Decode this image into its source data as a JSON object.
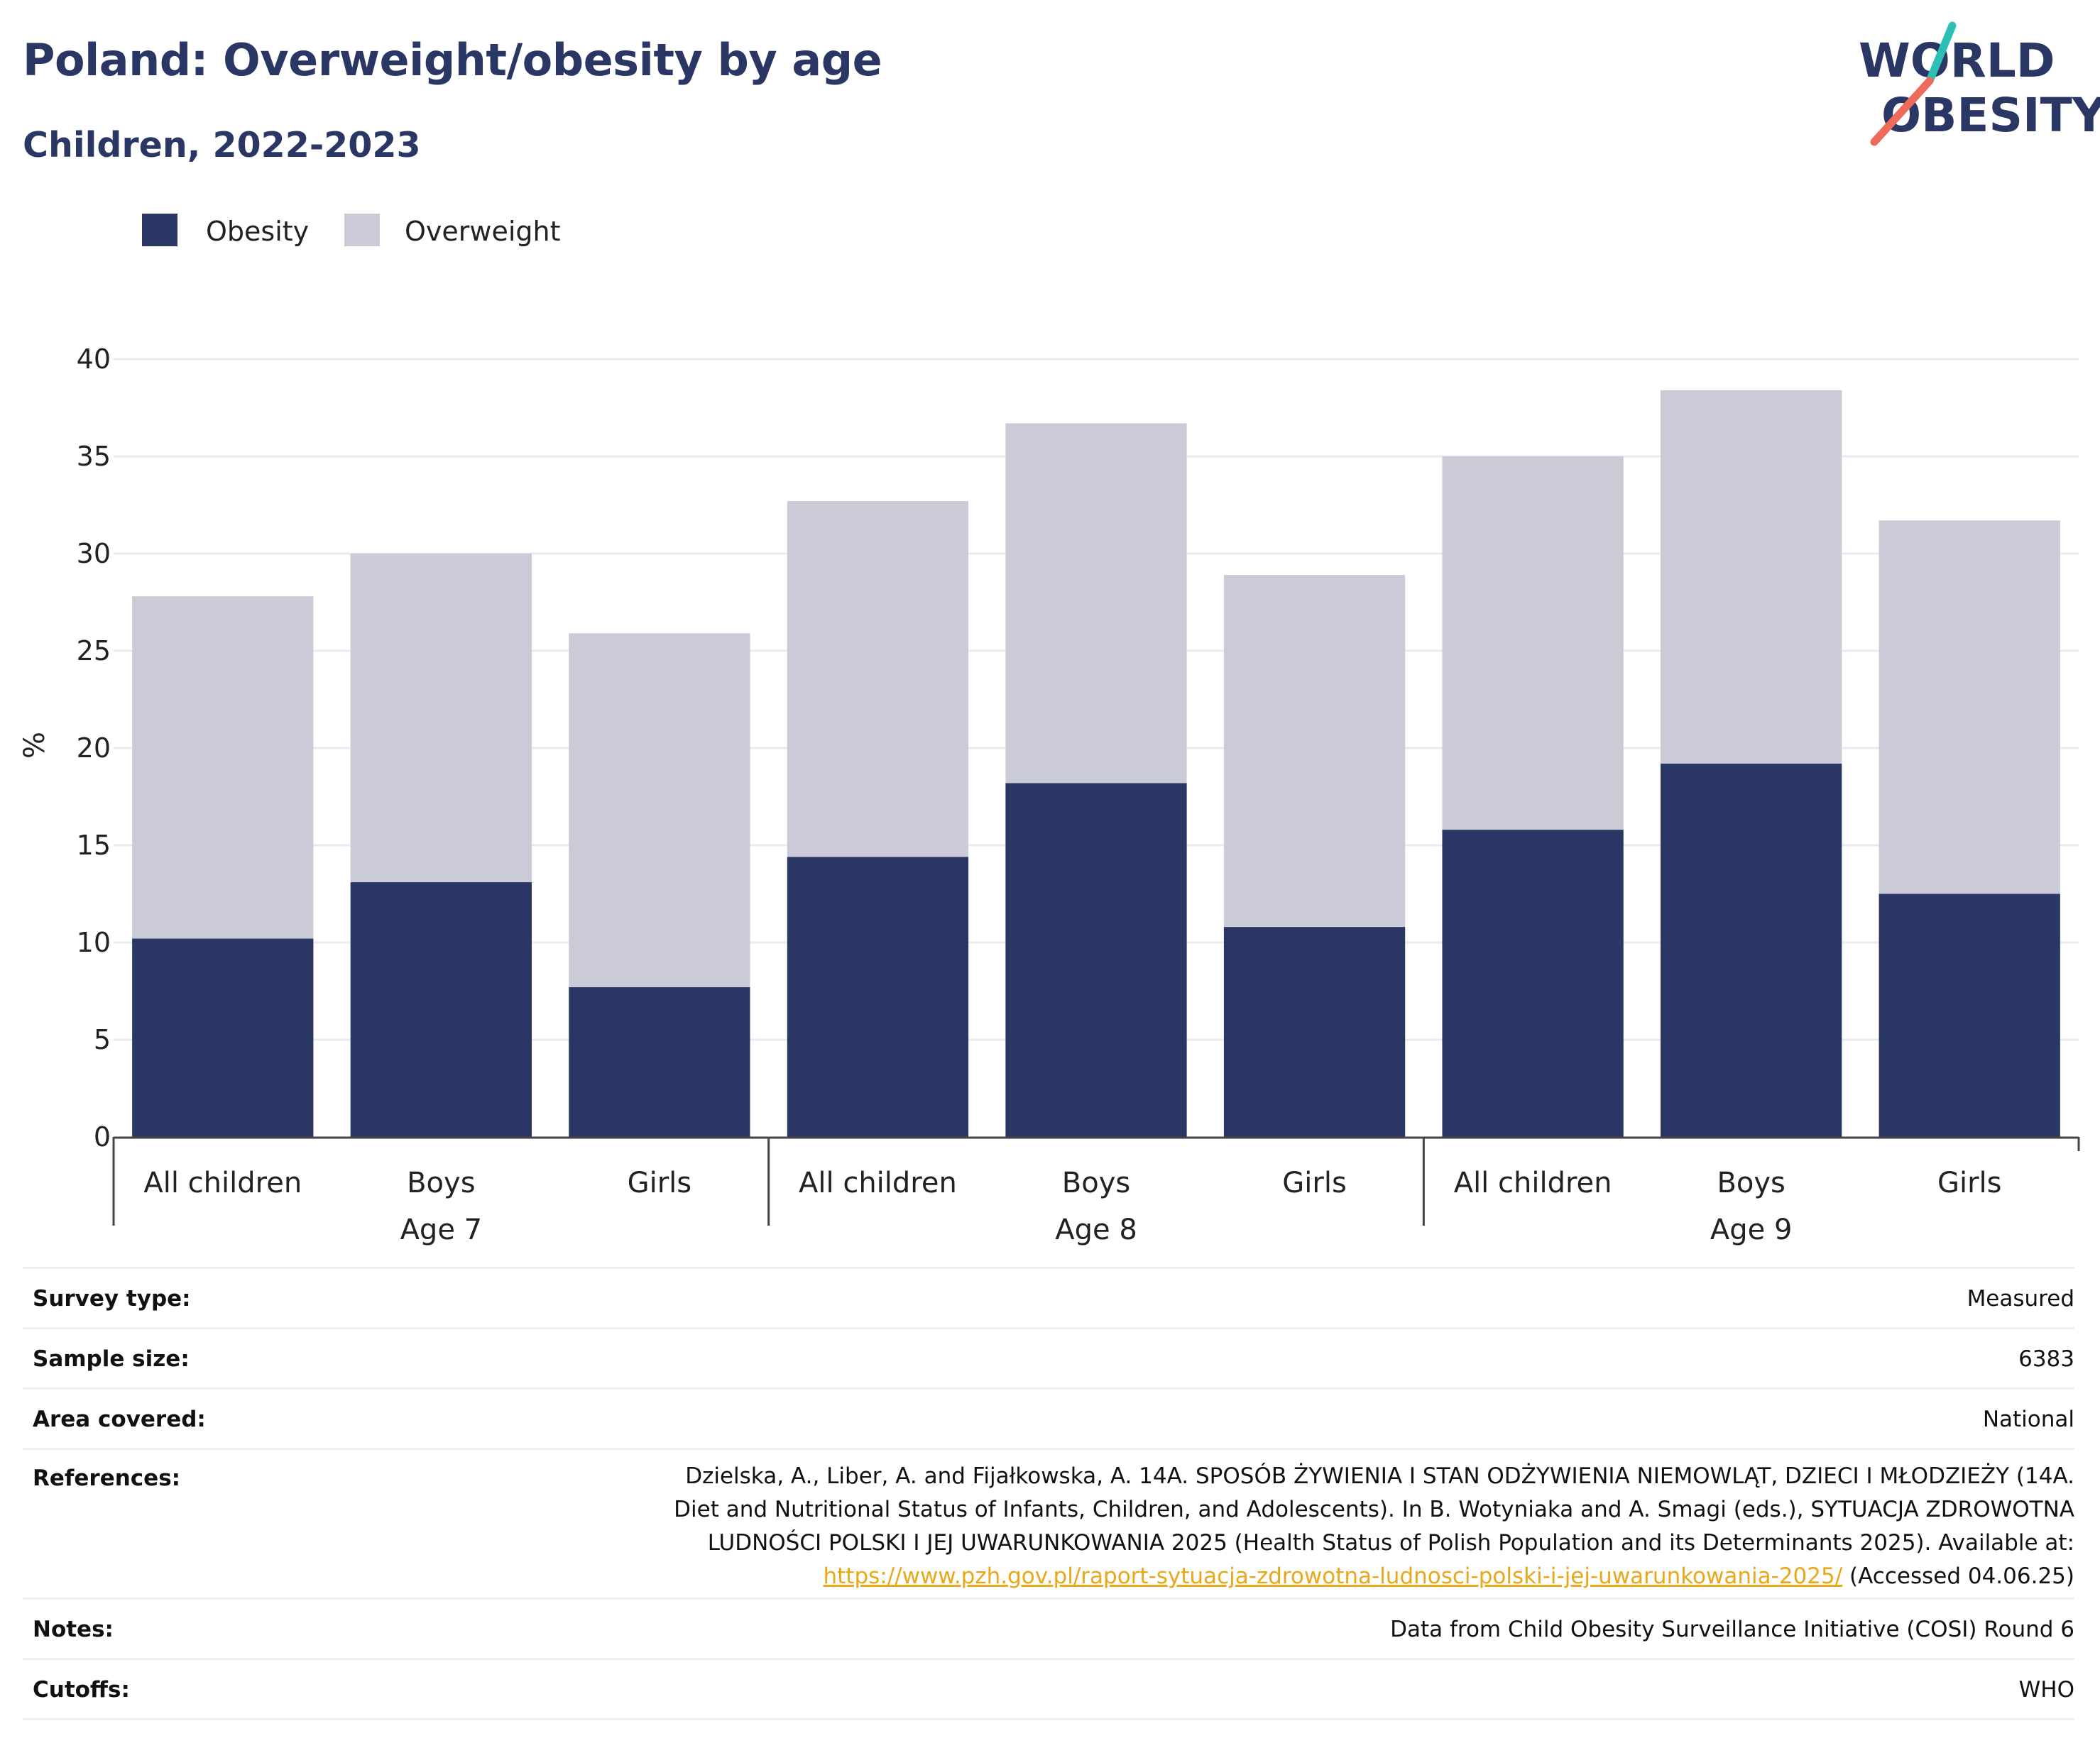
{
  "header": {
    "title": "Poland: Overweight/obesity by age",
    "subtitle": "Children, 2022-2023"
  },
  "logo": {
    "line1": "WORLD",
    "line2": "OBESITY",
    "colors": {
      "text": "#2a3664",
      "slash_top": "#2cbfb3",
      "slash_bottom": "#ee6a5a"
    }
  },
  "legend": [
    {
      "label": "Obesity",
      "color": "#2a3664"
    },
    {
      "label": "Overweight",
      "color": "#cacbd7"
    }
  ],
  "chart_data": {
    "type": "bar",
    "stacked": true,
    "categories": [
      "All children",
      "Boys",
      "Girls",
      "All children",
      "Boys",
      "Girls",
      "All children",
      "Boys",
      "Girls"
    ],
    "groups": [
      {
        "label": "Age 7",
        "count": 3
      },
      {
        "label": "Age 8",
        "count": 3
      },
      {
        "label": "Age 9",
        "count": 3
      }
    ],
    "series": [
      {
        "name": "Obesity",
        "color": "#2a3664",
        "values": [
          10.2,
          13.1,
          7.7,
          14.4,
          18.2,
          10.8,
          15.8,
          19.2,
          12.5
        ]
      },
      {
        "name": "Overweight",
        "color": "#cacbd7",
        "values": [
          17.6,
          16.9,
          18.2,
          18.3,
          18.5,
          18.1,
          19.2,
          19.2,
          19.2
        ]
      }
    ],
    "ylabel": "%",
    "ylim": [
      0,
      40
    ],
    "yticks": [
      0,
      5,
      10,
      15,
      20,
      25,
      30,
      35,
      40
    ],
    "grid": true,
    "legend_position": "top-left"
  },
  "info": {
    "survey_type": {
      "label": "Survey type:",
      "value": "Measured"
    },
    "sample_size": {
      "label": "Sample size:",
      "value": "6383"
    },
    "area_covered": {
      "label": "Area covered:",
      "value": "National"
    },
    "references": {
      "label": "References:",
      "line1": "Dzielska, A., Liber, A. and Fijałkowska, A. 14A. SPOSÓB ŻYWIENIA I STAN ODŻYWIENIA NIEMOWLĄT, DZIECI I MŁODZIEŻY (14A.",
      "line2": "Diet and Nutritional Status of Infants, Children, and Adolescents). In B. Wotyniaka and A. Smagi (eds.), SYTUACJA ZDROWOTNA",
      "line3": "LUDNOŚCI POLSKI I JEJ UWARUNKOWANIA 2025 (Health Status of Polish Population and its Determinants 2025). Available at:",
      "link": "https://www.pzh.gov.pl/raport-sytuacja-zdrowotna-ludnosci-polski-i-jej-uwarunkowania-2025/",
      "accessed": " (Accessed 04.06.25)"
    },
    "notes": {
      "label": "Notes:",
      "value": "Data from Child Obesity Surveillance Initiative (COSI) Round 6"
    },
    "cutoffs": {
      "label": "Cutoffs:",
      "value": "WHO"
    }
  }
}
